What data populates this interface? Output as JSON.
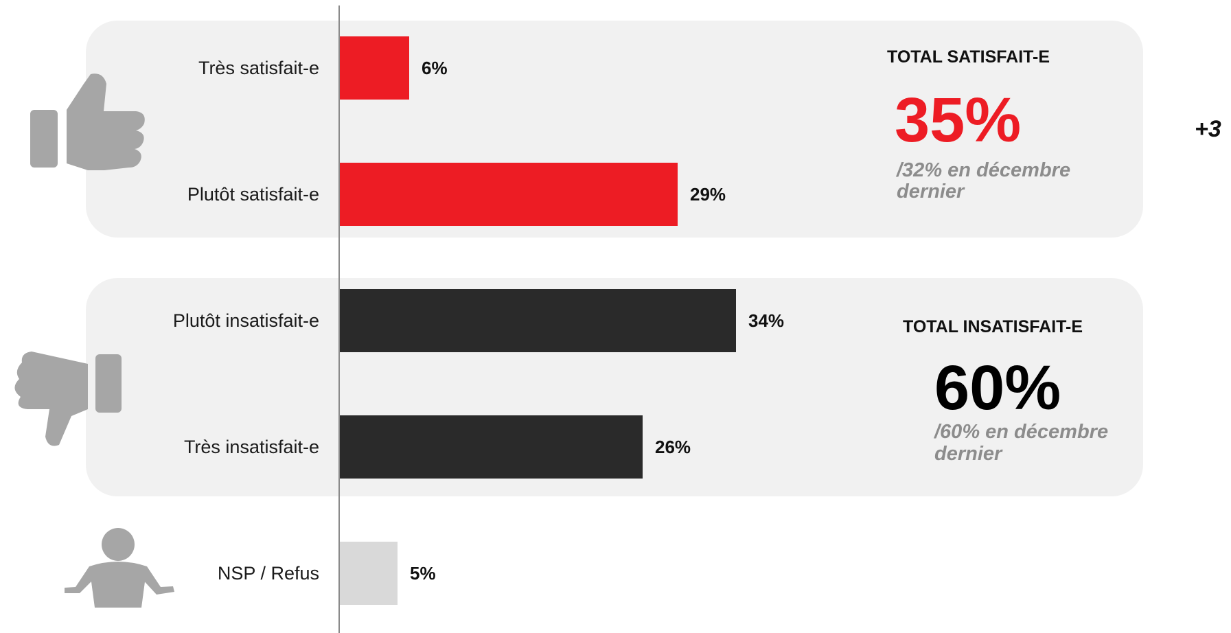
{
  "chart_data": {
    "type": "bar",
    "orientation": "horizontal",
    "categories": [
      "Très satisfait-e",
      "Plutôt satisfait-e",
      "Plutôt insatisfait-e",
      "Très insatisfait-e",
      "NSP / Refus"
    ],
    "values": [
      6,
      29,
      34,
      26,
      5
    ],
    "value_labels": [
      "6%",
      "29%",
      "34%",
      "26%",
      "5%"
    ],
    "bar_colors": [
      "#ed1c24",
      "#ed1c24",
      "#2a2a2a",
      "#2a2a2a",
      "#d9d9d9"
    ],
    "xlim": [
      0,
      40
    ],
    "grid": false,
    "groups": [
      {
        "title": "TOTAL SATISFAIT-E",
        "total": "35%",
        "total_color": "#ed1c24",
        "compare_line1": "/32% en décembre",
        "compare_line2": "dernier",
        "delta": "+3",
        "icon": "thumbs-up-icon"
      },
      {
        "title": "TOTAL INSATISFAIT-E",
        "total": "60%",
        "total_color": "#000000",
        "compare_line1": "/60% en décembre",
        "compare_line2": "dernier",
        "icon": "thumbs-down-icon"
      }
    ],
    "other_icon": "shrugging-person-icon"
  },
  "colors": {
    "panel_background": "#f1f1f1",
    "icon_gray": "#a6a6a6",
    "axis_line": "#8a8a8a"
  }
}
